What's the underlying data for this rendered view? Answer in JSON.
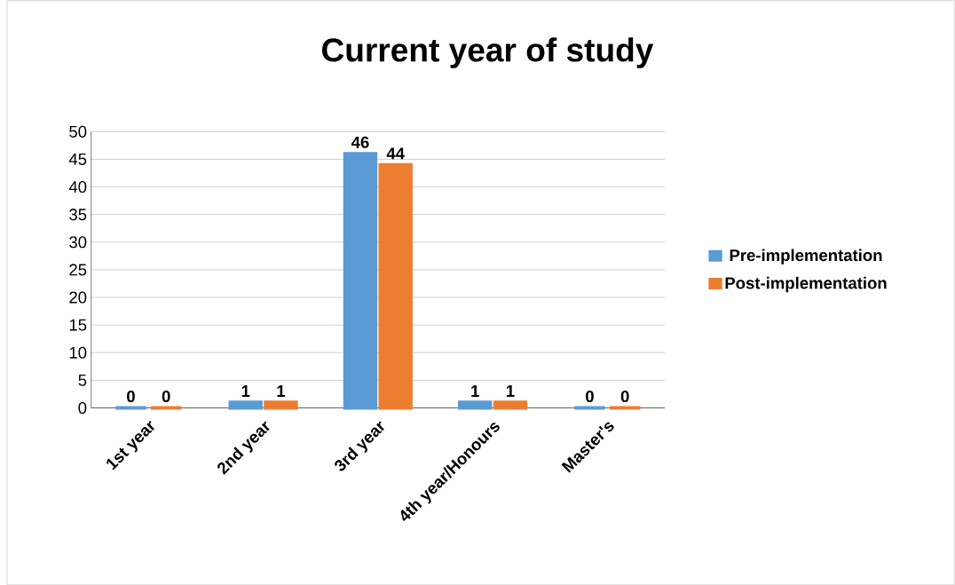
{
  "chart_data": {
    "type": "bar",
    "title": "Current year of study",
    "categories": [
      "1st year",
      "2nd year",
      "3rd year",
      "4th year/Honours",
      "Master's"
    ],
    "series": [
      {
        "name": "Pre-implementation",
        "color": "#5b9bd5",
        "values": [
          0,
          1,
          46,
          1,
          0
        ]
      },
      {
        "name": "Post-implementation",
        "color": "#ed7d31",
        "values": [
          0,
          1,
          44,
          1,
          0
        ]
      }
    ],
    "ylim": [
      0,
      50
    ],
    "yticks": [
      0,
      5,
      10,
      15,
      20,
      25,
      30,
      35,
      40,
      45,
      50
    ],
    "grid": "y",
    "legend": "right",
    "data_labels": true
  }
}
